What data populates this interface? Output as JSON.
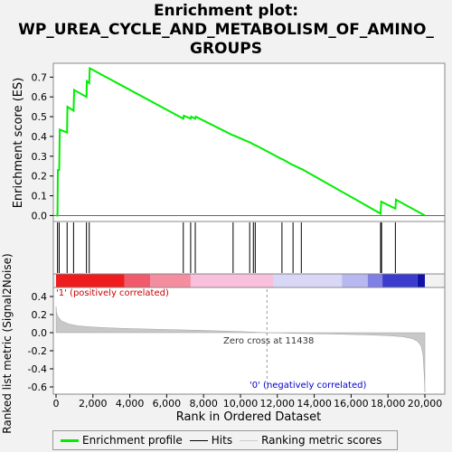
{
  "title_lines": [
    "Enrichment plot:",
    "WP_UREA_CYCLE_AND_METABOLISM_OF_AMINO_",
    "GROUPS"
  ],
  "chart_data": {
    "type": "line",
    "x_range": [
      0,
      20000
    ],
    "x_ticks": [
      0,
      2000,
      4000,
      6000,
      8000,
      10000,
      12000,
      14000,
      16000,
      18000,
      20000
    ],
    "x_tick_labels": [
      "0",
      "2,000",
      "4,000",
      "6,000",
      "8,000",
      "10,000",
      "12,000",
      "14,000",
      "16,000",
      "18,000",
      "20,000"
    ],
    "xlabel": "Rank in Ordered Dataset",
    "es_panel": {
      "ylabel": "Enrichment score (ES)",
      "ylim": [
        -0.03,
        0.77
      ],
      "y_ticks": [
        0.0,
        0.1,
        0.2,
        0.3,
        0.4,
        0.5,
        0.6,
        0.7
      ],
      "y_tick_labels": [
        "0.0",
        "0.1",
        "0.2",
        "0.3",
        "0.4",
        "0.5",
        "0.6",
        "0.7"
      ],
      "series_color": "#00ee00",
      "points": [
        [
          0,
          0.0
        ],
        [
          80,
          0.0
        ],
        [
          100,
          0.23
        ],
        [
          170,
          0.23
        ],
        [
          200,
          0.435
        ],
        [
          600,
          0.42
        ],
        [
          620,
          0.55
        ],
        [
          950,
          0.53
        ],
        [
          980,
          0.635
        ],
        [
          1650,
          0.6
        ],
        [
          1670,
          0.68
        ],
        [
          1800,
          0.67
        ],
        [
          1830,
          0.745
        ],
        [
          6900,
          0.49
        ],
        [
          6930,
          0.505
        ],
        [
          7300,
          0.49
        ],
        [
          7330,
          0.5
        ],
        [
          7550,
          0.49
        ],
        [
          7580,
          0.5
        ],
        [
          9600,
          0.405
        ],
        [
          9630,
          0.405
        ],
        [
          10500,
          0.37
        ],
        [
          10530,
          0.37
        ],
        [
          10700,
          0.36
        ],
        [
          10730,
          0.36
        ],
        [
          10800,
          0.355
        ],
        [
          10830,
          0.355
        ],
        [
          12250,
          0.285
        ],
        [
          12280,
          0.285
        ],
        [
          12850,
          0.255
        ],
        [
          12880,
          0.255
        ],
        [
          13300,
          0.235
        ],
        [
          13330,
          0.235
        ],
        [
          17600,
          0.01
        ],
        [
          17630,
          0.07
        ],
        [
          18400,
          0.035
        ],
        [
          18430,
          0.08
        ],
        [
          20000,
          0.0
        ]
      ]
    },
    "hits": [
      80,
      170,
      600,
      950,
      1650,
      1800,
      6900,
      7300,
      7550,
      9600,
      10500,
      10700,
      10800,
      12250,
      12850,
      13300,
      17600,
      17650,
      18400
    ],
    "heatmap_segments": [
      {
        "from": 0,
        "to": 3700,
        "color": "#ee1c1c"
      },
      {
        "from": 3700,
        "to": 5100,
        "color": "#f05a6a"
      },
      {
        "from": 5100,
        "to": 7300,
        "color": "#f58da0"
      },
      {
        "from": 7300,
        "to": 11800,
        "color": "#f8c0dc"
      },
      {
        "from": 11800,
        "to": 15500,
        "color": "#d8d8f6"
      },
      {
        "from": 15500,
        "to": 16900,
        "color": "#b8b8f0"
      },
      {
        "from": 16900,
        "to": 17700,
        "color": "#8080e4"
      },
      {
        "from": 17700,
        "to": 19600,
        "color": "#3c3ccc"
      },
      {
        "from": 19600,
        "to": 20000,
        "color": "#1111aa"
      }
    ],
    "metric_panel": {
      "ylabel": "Ranked list metric (Signal2Noise)",
      "ylim": [
        -0.68,
        0.5
      ],
      "y_ticks": [
        0.4,
        0.2,
        0.0,
        -0.2,
        -0.4,
        -0.6
      ],
      "y_tick_labels": [
        "0.4",
        "0.2",
        "0.0",
        "-0.2",
        "-0.4",
        "-0.6"
      ],
      "points": [
        [
          0,
          0.29
        ],
        [
          30,
          0.22
        ],
        [
          100,
          0.18
        ],
        [
          300,
          0.13
        ],
        [
          700,
          0.095
        ],
        [
          1200,
          0.075
        ],
        [
          2000,
          0.062
        ],
        [
          3000,
          0.052
        ],
        [
          4000,
          0.045
        ],
        [
          6000,
          0.035
        ],
        [
          8000,
          0.025
        ],
        [
          10000,
          0.012
        ],
        [
          11438,
          0.0
        ],
        [
          13000,
          -0.008
        ],
        [
          15000,
          -0.015
        ],
        [
          17000,
          -0.025
        ],
        [
          18000,
          -0.033
        ],
        [
          18800,
          -0.045
        ],
        [
          19300,
          -0.065
        ],
        [
          19600,
          -0.095
        ],
        [
          19800,
          -0.15
        ],
        [
          19900,
          -0.25
        ],
        [
          19960,
          -0.45
        ],
        [
          20000,
          -0.66
        ]
      ],
      "zero_cross": 11438,
      "zero_cross_label": "Zero cross at 11438",
      "pos_label": "'1' (positively correlated)",
      "neg_label": "'0' (negatively correlated)",
      "pos_color": "#cc0000",
      "neg_color": "#0000cc"
    }
  },
  "legend": {
    "items": [
      {
        "label": "Enrichment profile",
        "color": "#00ee00"
      },
      {
        "label": "Hits",
        "color": "#000000"
      },
      {
        "label": "Ranking metric scores",
        "color": "#cccccc"
      }
    ]
  }
}
